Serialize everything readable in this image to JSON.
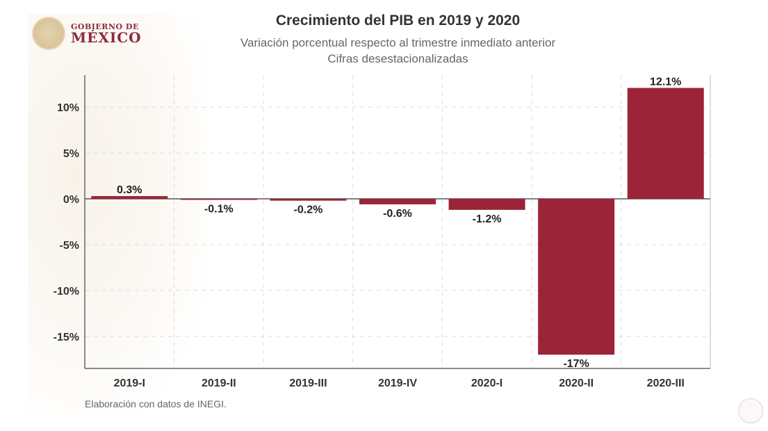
{
  "logo": {
    "line1": "GOBIERNO DE",
    "line2": "MÉXICO"
  },
  "chart_data": {
    "type": "bar",
    "title": "Crecimiento del PIB en 2019 y 2020",
    "subtitle": [
      "Variación porcentual respecto al trimestre inmediato anterior",
      "Cifras desestacionalizadas"
    ],
    "categories": [
      "2019-I",
      "2019-II",
      "2019-III",
      "2019-IV",
      "2020-I",
      "2020-II",
      "2020-III"
    ],
    "values": [
      0.3,
      -0.1,
      -0.2,
      -0.6,
      -1.2,
      -17,
      12.1
    ],
    "data_labels": [
      "0.3%",
      "-0.1%",
      "-0.2%",
      "-0.6%",
      "-1.2%",
      "-17%",
      "12.1%"
    ],
    "yticks": [
      10,
      5,
      0,
      -5,
      -10,
      -15
    ],
    "ytick_labels": [
      "10%",
      "5%",
      "0%",
      "-5%",
      "-10%",
      "-15%"
    ],
    "ylim": [
      -18.5,
      13.5
    ],
    "grid": true,
    "bar_color": "#9b2438",
    "xlabel": "",
    "ylabel": ""
  },
  "footer": "Elaboración con datos de INEGI."
}
